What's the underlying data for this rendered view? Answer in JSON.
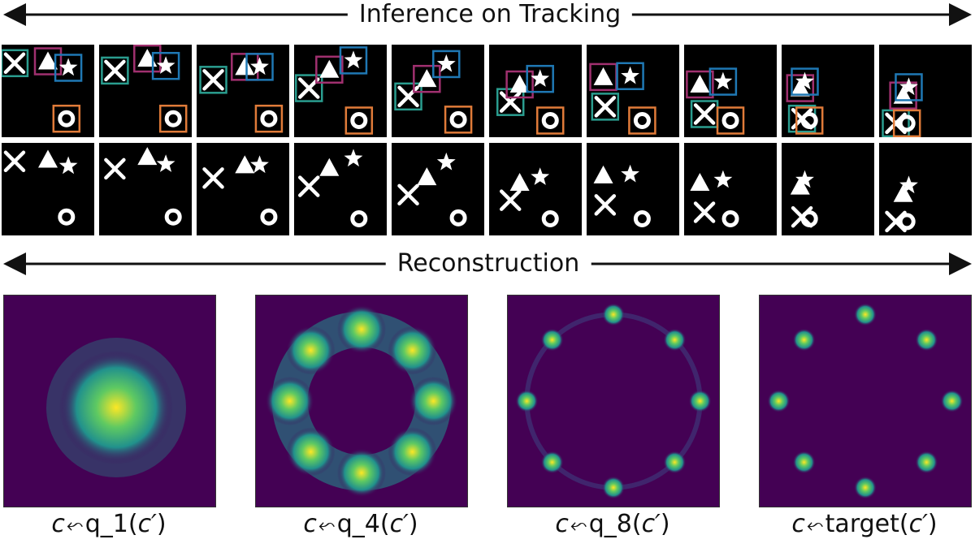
{
  "header": {
    "tracking_title": "Inference on Tracking",
    "reconstruction_title": "Reconstruction"
  },
  "colors": {
    "x_box": "#2a9d8f",
    "triangle_box": "#a0306f",
    "star_box": "#1f78b4",
    "circle_box": "#e07b39",
    "density_bg": "#440154",
    "density_mid": "#21918c",
    "density_high": "#fde725"
  },
  "icons": [
    "x-shape",
    "triangle-shape",
    "star-shape",
    "circle-shape",
    "left-arrow",
    "right-arrow"
  ],
  "tracking": {
    "frames": 10,
    "objects": [
      "x",
      "triangle",
      "star",
      "circle"
    ],
    "positions_note": "object centers per frame, as fractions of each frame",
    "trajectories": {
      "x": [
        [
          0.14,
          0.2
        ],
        [
          0.17,
          0.28
        ],
        [
          0.18,
          0.38
        ],
        [
          0.16,
          0.47
        ],
        [
          0.18,
          0.56
        ],
        [
          0.23,
          0.62
        ],
        [
          0.2,
          0.67
        ],
        [
          0.22,
          0.75
        ],
        [
          0.22,
          0.8
        ],
        [
          0.18,
          0.85
        ]
      ],
      "triangle": [
        [
          0.5,
          0.18
        ],
        [
          0.52,
          0.15
        ],
        [
          0.52,
          0.24
        ],
        [
          0.38,
          0.27
        ],
        [
          0.38,
          0.37
        ],
        [
          0.33,
          0.43
        ],
        [
          0.18,
          0.35
        ],
        [
          0.17,
          0.43
        ],
        [
          0.2,
          0.47
        ],
        [
          0.26,
          0.55
        ]
      ],
      "star": [
        [
          0.72,
          0.25
        ],
        [
          0.72,
          0.23
        ],
        [
          0.68,
          0.24
        ],
        [
          0.64,
          0.17
        ],
        [
          0.59,
          0.21
        ],
        [
          0.55,
          0.37
        ],
        [
          0.47,
          0.34
        ],
        [
          0.42,
          0.4
        ],
        [
          0.25,
          0.4
        ],
        [
          0.32,
          0.46
        ]
      ],
      "circle": [
        [
          0.7,
          0.8
        ],
        [
          0.8,
          0.8
        ],
        [
          0.78,
          0.8
        ],
        [
          0.7,
          0.82
        ],
        [
          0.72,
          0.81
        ],
        [
          0.66,
          0.82
        ],
        [
          0.6,
          0.82
        ],
        [
          0.5,
          0.82
        ],
        [
          0.3,
          0.82
        ],
        [
          0.3,
          0.85
        ]
      ]
    }
  },
  "reconstruction": {
    "panels": [
      {
        "name": "q1",
        "caption_fn": "q_1",
        "mode": "blob"
      },
      {
        "name": "q4",
        "caption_fn": "q_4",
        "mode": "ring-broad"
      },
      {
        "name": "q8",
        "caption_fn": "q_8",
        "mode": "ring-sharp-trace"
      },
      {
        "name": "target",
        "caption_fn": "target",
        "mode": "ring-sharp"
      }
    ],
    "caption_lhs": "c",
    "caption_arrow": "⬿",
    "caption_arg": "c′"
  }
}
